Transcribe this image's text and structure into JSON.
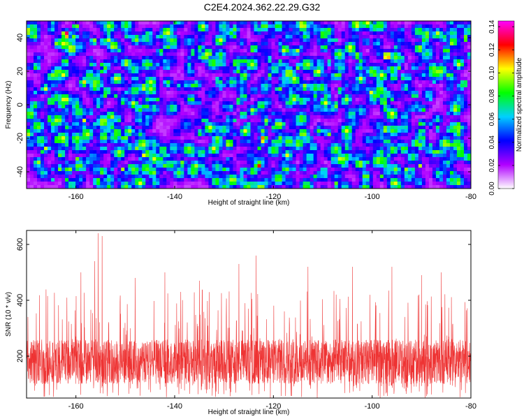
{
  "title": "C2E4.2024.362.22.29.G32",
  "chart_data": [
    {
      "type": "heatmap",
      "xlabel": "Height of straight line (km)",
      "ylabel": "Frequency (Hz)",
      "xlim": [
        -170,
        -80
      ],
      "ylim": [
        -50,
        50
      ],
      "x_ticks": [
        -160,
        -140,
        -120,
        -100,
        -80
      ],
      "y_ticks": [
        -40,
        -20,
        0,
        20,
        40
      ],
      "colorbar": {
        "label": "Normalized spectral amplitude",
        "range": [
          0,
          0.145
        ],
        "ticks": [
          0.0,
          0.02,
          0.04,
          0.06,
          0.08,
          0.1,
          0.12,
          0.14
        ],
        "tick_labels": [
          "0.00",
          "0.02",
          "0.04",
          "0.06",
          "0.08",
          "0.10",
          "0.12",
          "0.14"
        ],
        "colors": [
          "#ffffff",
          "#b000ff",
          "#0000ff",
          "#00d0ff",
          "#00ff00",
          "#ffff00",
          "#ff0000",
          "#ff00ff"
        ]
      },
      "hot_spots": [
        {
          "x": -162,
          "y": 42,
          "v": 0.14
        },
        {
          "x": -97,
          "y": 29,
          "v": 0.13
        },
        {
          "x": -123,
          "y": -36,
          "v": 0.12
        },
        {
          "x": -122,
          "y": -20,
          "v": 0.11
        },
        {
          "x": -165,
          "y": 2,
          "v": 0.09
        }
      ]
    },
    {
      "type": "line",
      "xlabel": "Height of straight line (km)",
      "ylabel": "SNR (10 * v/v)",
      "xlim": [
        -170,
        -80
      ],
      "ylim": [
        50,
        650
      ],
      "x_ticks": [
        -160,
        -140,
        -120,
        -100,
        -80
      ],
      "y_ticks": [
        200,
        400,
        600
      ],
      "series": [
        {
          "color": "#ee3333",
          "baseline": 180,
          "spread": 80,
          "peaks": [
            {
              "x": -155.5,
              "y": 640
            },
            {
              "x": -154.7,
              "y": 630
            },
            {
              "x": -156.2,
              "y": 540
            },
            {
              "x": -123.5,
              "y": 560
            },
            {
              "x": -127,
              "y": 530
            },
            {
              "x": -113,
              "y": 520
            },
            {
              "x": -104,
              "y": 520
            },
            {
              "x": -96,
              "y": 520
            },
            {
              "x": -142,
              "y": 500
            },
            {
              "x": -159,
              "y": 500
            },
            {
              "x": -148,
              "y": 480
            },
            {
              "x": -135,
              "y": 470
            },
            {
              "x": -90,
              "y": 490
            },
            {
              "x": -86,
              "y": 500
            }
          ]
        }
      ]
    }
  ]
}
